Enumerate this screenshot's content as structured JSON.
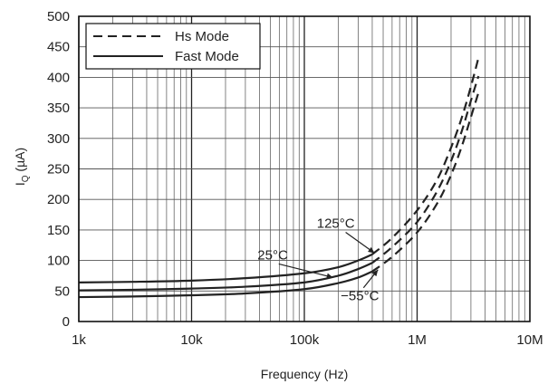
{
  "chart_data": {
    "type": "line",
    "xlabel": "Frequency (Hz)",
    "ylabel_main": "I",
    "ylabel_sub": "Q",
    "ylabel_unit": " (µA)",
    "x_scale": "log",
    "xlim": [
      1000,
      10000000
    ],
    "ylim": [
      0,
      500
    ],
    "x_ticks": [
      {
        "value": 1000,
        "label": "1k"
      },
      {
        "value": 10000,
        "label": "10k"
      },
      {
        "value": 100000,
        "label": "100k"
      },
      {
        "value": 1000000,
        "label": "1M"
      },
      {
        "value": 10000000,
        "label": "10M"
      }
    ],
    "y_ticks": [
      0,
      50,
      100,
      150,
      200,
      250,
      300,
      350,
      400,
      450,
      500
    ],
    "grid": true,
    "legend_position": "top-left",
    "legend": [
      {
        "label": "Hs Mode",
        "style": "dashed"
      },
      {
        "label": "Fast Mode",
        "style": "solid"
      }
    ],
    "series": [
      {
        "temp": "125°C",
        "mode": "Fast Mode",
        "style": "solid",
        "x": [
          1000,
          3000,
          10000,
          30000,
          100000,
          200000,
          300000,
          400000
        ],
        "y": [
          64,
          65,
          67,
          71,
          79,
          89,
          100,
          110
        ]
      },
      {
        "temp": "125°C",
        "mode": "Hs Mode",
        "style": "dashed",
        "x": [
          400000,
          600000,
          1000000,
          1500000,
          2000000,
          2500000,
          3000000,
          3500000
        ],
        "y": [
          110,
          137,
          182,
          232,
          285,
          335,
          385,
          432
        ]
      },
      {
        "temp": "25°C",
        "mode": "Fast Mode",
        "style": "solid",
        "x": [
          1000,
          3000,
          10000,
          30000,
          100000,
          200000,
          300000,
          400000
        ],
        "y": [
          51,
          52,
          54,
          57,
          64,
          75,
          86,
          96
        ]
      },
      {
        "temp": "25°C",
        "mode": "Hs Mode",
        "style": "dashed",
        "x": [
          400000,
          600000,
          1000000,
          1500000,
          2000000,
          2500000,
          3000000,
          3500000
        ],
        "y": [
          96,
          122,
          163,
          213,
          263,
          313,
          362,
          402
        ]
      },
      {
        "temp": "−55°C",
        "mode": "Fast Mode",
        "style": "solid",
        "x": [
          1000,
          3000,
          10000,
          30000,
          100000,
          200000,
          300000,
          400000
        ],
        "y": [
          40,
          41,
          43,
          46,
          53,
          63,
          72,
          82
        ]
      },
      {
        "temp": "−55°C",
        "mode": "Hs Mode",
        "style": "dashed",
        "x": [
          400000,
          600000,
          1000000,
          1500000,
          2000000,
          2500000,
          3000000,
          3500000
        ],
        "y": [
          82,
          106,
          146,
          193,
          240,
          288,
          335,
          375
        ]
      }
    ],
    "annotations": [
      {
        "text": "125°C",
        "point_x": 420000,
        "point_y": 112
      },
      {
        "text": "25°C",
        "point_x": 180000,
        "point_y": 72
      },
      {
        "text": "−55°C",
        "point_x": 450000,
        "point_y": 85
      }
    ]
  }
}
